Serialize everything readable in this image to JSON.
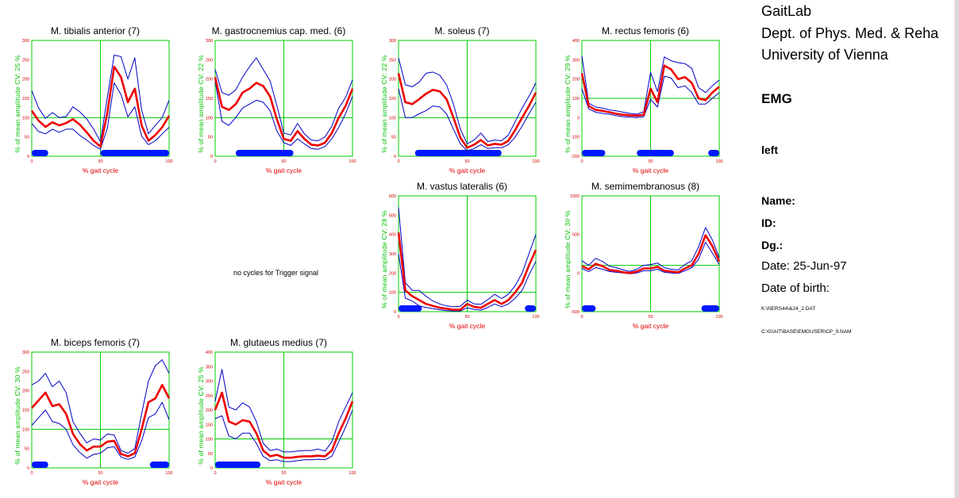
{
  "header": {
    "lab": "GaitLab",
    "dept": "Dept. of Phys. Med. & Reha",
    "university": "University of Vienna",
    "section": "EMG",
    "side": "left",
    "name_label": "Name:",
    "id_label": "ID:",
    "dg_label": "Dg.:",
    "date": "Date: 25-Jun-97",
    "dob_label": "Date of birth:",
    "file1": "K:\\NERS44\\&24_2.DAT",
    "file2": "C:\\G\\AIT\\BASE\\EMGUSER\\CP_9.NAM"
  },
  "no_cycles_text": "no cycles for Trigger signal",
  "chart_data": [
    {
      "type": "line",
      "title": "M. tibialis anterior (7)",
      "ylabel": "% of mean amplitude  CV: 25 %",
      "xlabel": "% gait cycle",
      "xlim": [
        0,
        100
      ],
      "ylim": [
        0,
        300
      ],
      "yticks": [
        "0",
        "50",
        "100",
        "150",
        "200",
        "250",
        "300"
      ],
      "xticks": [
        "0",
        "50",
        "100"
      ],
      "x": [
        0,
        5,
        10,
        15,
        20,
        25,
        30,
        35,
        40,
        45,
        50,
        55,
        60,
        65,
        70,
        75,
        80,
        85,
        90,
        95,
        100
      ],
      "mean": [
        118,
        92,
        76,
        88,
        80,
        86,
        96,
        82,
        62,
        40,
        25,
        112,
        232,
        205,
        140,
        175,
        80,
        40,
        55,
        75,
        105
      ],
      "upper": [
        170,
        125,
        98,
        113,
        100,
        103,
        128,
        115,
        97,
        70,
        38,
        152,
        262,
        258,
        200,
        255,
        120,
        58,
        80,
        100,
        145
      ],
      "lower": [
        85,
        64,
        58,
        70,
        62,
        70,
        70,
        54,
        42,
        28,
        18,
        72,
        190,
        160,
        102,
        128,
        52,
        30,
        40,
        58,
        75
      ],
      "stance_bars": [
        [
          0,
          12
        ],
        [
          50,
          100
        ]
      ]
    },
    {
      "type": "line",
      "title": "M. gastrocnemius cap. med. (6)",
      "ylabel": "% of mean amplitude  CV: 22 %",
      "xlabel": "% gait cycle",
      "xlim": [
        0,
        100
      ],
      "ylim": [
        0,
        300
      ],
      "yticks": [
        "0",
        "50",
        "100",
        "150",
        "200",
        "250",
        "300"
      ],
      "xticks": [
        "0",
        "50",
        "100"
      ],
      "x": [
        0,
        5,
        10,
        15,
        20,
        25,
        30,
        35,
        40,
        45,
        50,
        55,
        60,
        65,
        70,
        75,
        80,
        85,
        90,
        95,
        100
      ],
      "mean": [
        205,
        128,
        120,
        135,
        165,
        175,
        190,
        182,
        155,
        95,
        45,
        40,
        65,
        45,
        30,
        28,
        35,
        60,
        100,
        130,
        175
      ],
      "upper": [
        225,
        165,
        158,
        172,
        205,
        232,
        255,
        225,
        195,
        130,
        60,
        55,
        85,
        58,
        42,
        40,
        50,
        78,
        125,
        152,
        198
      ],
      "lower": [
        195,
        90,
        80,
        100,
        125,
        135,
        145,
        140,
        118,
        65,
        35,
        28,
        45,
        32,
        20,
        18,
        25,
        45,
        75,
        110,
        155
      ],
      "stance_bars": [
        [
          15,
          57
        ]
      ]
    },
    {
      "type": "line",
      "title": "M. soleus (7)",
      "ylabel": "% of mean amplitude  CV: 22 %",
      "xlabel": "% gait cycle",
      "xlim": [
        0,
        100
      ],
      "ylim": [
        0,
        300
      ],
      "yticks": [
        "0",
        "50",
        "100",
        "150",
        "200",
        "250",
        "300"
      ],
      "xticks": [
        "0",
        "50",
        "100"
      ],
      "x": [
        0,
        5,
        10,
        15,
        20,
        25,
        30,
        35,
        40,
        45,
        50,
        55,
        60,
        65,
        70,
        75,
        80,
        85,
        90,
        95,
        100
      ],
      "mean": [
        215,
        140,
        135,
        148,
        162,
        172,
        168,
        148,
        100,
        48,
        22,
        30,
        42,
        28,
        32,
        30,
        40,
        68,
        100,
        130,
        165
      ],
      "upper": [
        255,
        185,
        180,
        192,
        215,
        218,
        210,
        185,
        135,
        70,
        32,
        42,
        60,
        38,
        42,
        40,
        55,
        90,
        125,
        155,
        190
      ],
      "lower": [
        175,
        100,
        100,
        110,
        118,
        130,
        128,
        110,
        70,
        32,
        14,
        20,
        30,
        20,
        22,
        22,
        30,
        50,
        78,
        110,
        140
      ],
      "stance_bars": [
        [
          12,
          75
        ]
      ]
    },
    {
      "type": "line",
      "title": "M. rectus femoris (6)",
      "ylabel": "% of mean amplitude  CV: 29 %",
      "xlabel": "% gait cycle",
      "xlim": [
        0,
        100
      ],
      "ylim": [
        -200,
        400
      ],
      "yticks": [
        "-200",
        "-100",
        "0",
        "100",
        "200",
        "300",
        "400"
      ],
      "xticks": [
        "0",
        "50",
        "100"
      ],
      "x": [
        0,
        5,
        10,
        15,
        20,
        25,
        30,
        35,
        40,
        45,
        50,
        55,
        60,
        65,
        70,
        75,
        80,
        85,
        90,
        95,
        100
      ],
      "mean": [
        230,
        60,
        40,
        35,
        28,
        20,
        15,
        12,
        10,
        15,
        150,
        80,
        270,
        250,
        200,
        210,
        180,
        100,
        90,
        130,
        160
      ],
      "upper": [
        320,
        75,
        55,
        50,
        40,
        35,
        28,
        22,
        18,
        30,
        235,
        135,
        315,
        295,
        285,
        280,
        255,
        155,
        130,
        165,
        195
      ],
      "lower": [
        150,
        45,
        28,
        22,
        18,
        10,
        5,
        2,
        0,
        5,
        95,
        55,
        215,
        205,
        155,
        165,
        130,
        70,
        70,
        100,
        130
      ],
      "stance_bars": [
        [
          0,
          17
        ],
        [
          40,
          67
        ],
        [
          92,
          100
        ]
      ]
    },
    {
      "type": "line",
      "title": "M. vastus lateralis (6)",
      "ylabel": "% of mean amplitude  CV: 29 %",
      "xlabel": "% gait cycle",
      "xlim": [
        0,
        100
      ],
      "ylim": [
        0,
        600
      ],
      "yticks": [
        "0",
        "100",
        "200",
        "300",
        "400",
        "500",
        "600"
      ],
      "xticks": [
        "0",
        "50",
        "100"
      ],
      "x": [
        0,
        5,
        10,
        15,
        20,
        25,
        30,
        35,
        40,
        45,
        50,
        55,
        60,
        65,
        70,
        75,
        80,
        85,
        90,
        95,
        100
      ],
      "mean": [
        410,
        110,
        80,
        60,
        40,
        30,
        20,
        15,
        10,
        10,
        40,
        25,
        20,
        40,
        60,
        40,
        60,
        100,
        150,
        240,
        320
      ],
      "upper": [
        540,
        150,
        110,
        110,
        80,
        55,
        40,
        30,
        25,
        28,
        60,
        40,
        38,
        62,
        90,
        68,
        90,
        135,
        200,
        300,
        400
      ],
      "lower": [
        300,
        70,
        55,
        30,
        22,
        15,
        10,
        5,
        3,
        3,
        20,
        12,
        8,
        22,
        40,
        25,
        40,
        70,
        110,
        190,
        260
      ],
      "stance_bars": [
        [
          0,
          17
        ],
        [
          92,
          100
        ]
      ]
    },
    {
      "type": "line",
      "title": "M. semimembranosus (8)",
      "ylabel": "% of mean amplitude  CV: 30 %",
      "xlabel": "% gait cycle",
      "xlim": [
        0,
        100
      ],
      "ylim": [
        -500,
        1000
      ],
      "yticks": [
        "-500",
        "0",
        "500",
        "1000"
      ],
      "xticks": [
        "0",
        "50",
        "100"
      ],
      "x": [
        0,
        5,
        10,
        15,
        20,
        25,
        30,
        35,
        40,
        45,
        50,
        55,
        60,
        65,
        70,
        75,
        80,
        85,
        90,
        95,
        100
      ],
      "mean": [
        90,
        50,
        120,
        90,
        40,
        30,
        10,
        0,
        20,
        60,
        60,
        80,
        30,
        20,
        10,
        60,
        100,
        250,
        490,
        350,
        150
      ],
      "upper": [
        160,
        100,
        190,
        150,
        90,
        70,
        40,
        20,
        50,
        100,
        110,
        130,
        70,
        50,
        40,
        110,
        160,
        340,
        590,
        430,
        200
      ],
      "lower": [
        60,
        20,
        70,
        50,
        20,
        10,
        0,
        -10,
        0,
        30,
        30,
        50,
        10,
        0,
        -5,
        30,
        70,
        180,
        400,
        260,
        110
      ],
      "stance_bars": [
        [
          0,
          10
        ],
        [
          87,
          100
        ]
      ]
    },
    {
      "type": "line",
      "title": "M. biceps femoris (7)",
      "ylabel": "% of mean amplitude  CV: 30 %",
      "xlabel": "% gait cycle",
      "xlim": [
        0,
        100
      ],
      "ylim": [
        0,
        300
      ],
      "yticks": [
        "0",
        "50",
        "100",
        "150",
        "200",
        "250",
        "300"
      ],
      "xticks": [
        "0",
        "50",
        "100"
      ],
      "x": [
        0,
        5,
        10,
        15,
        20,
        25,
        30,
        35,
        40,
        45,
        50,
        55,
        60,
        65,
        70,
        75,
        80,
        85,
        90,
        95,
        100
      ],
      "mean": [
        155,
        175,
        195,
        160,
        165,
        140,
        88,
        62,
        45,
        55,
        55,
        68,
        70,
        36,
        30,
        38,
        100,
        170,
        180,
        215,
        180
      ],
      "upper": [
        215,
        225,
        245,
        210,
        225,
        195,
        120,
        90,
        65,
        75,
        72,
        88,
        85,
        45,
        38,
        50,
        140,
        225,
        265,
        280,
        245
      ],
      "lower": [
        110,
        130,
        150,
        120,
        115,
        100,
        60,
        40,
        25,
        35,
        38,
        52,
        55,
        28,
        22,
        28,
        70,
        130,
        140,
        170,
        125
      ],
      "stance_bars": [
        [
          0,
          12
        ],
        [
          86,
          100
        ]
      ]
    },
    {
      "type": "line",
      "title": "M. glutaeus medius (7)",
      "ylabel": "% of mean amplitude  CV: 25 %",
      "xlabel": "% gait cycle",
      "xlim": [
        0,
        100
      ],
      "ylim": [
        0,
        400
      ],
      "yticks": [
        "0",
        "50",
        "100",
        "150",
        "200",
        "250",
        "300",
        "350",
        "400"
      ],
      "xticks": [
        "0",
        "50",
        "100"
      ],
      "x": [
        0,
        5,
        10,
        15,
        20,
        25,
        30,
        35,
        40,
        45,
        50,
        55,
        60,
        65,
        70,
        75,
        80,
        85,
        90,
        95,
        100
      ],
      "mean": [
        200,
        260,
        160,
        150,
        165,
        160,
        120,
        60,
        40,
        45,
        35,
        35,
        38,
        40,
        40,
        42,
        40,
        60,
        120,
        170,
        230
      ],
      "upper": [
        230,
        340,
        210,
        200,
        225,
        210,
        160,
        85,
        60,
        65,
        55,
        55,
        58,
        60,
        60,
        65,
        58,
        90,
        160,
        210,
        260
      ],
      "lower": [
        170,
        180,
        110,
        100,
        120,
        120,
        85,
        40,
        25,
        28,
        22,
        22,
        25,
        28,
        28,
        30,
        28,
        40,
        90,
        140,
        200
      ],
      "stance_bars": [
        [
          0,
          33
        ]
      ]
    }
  ]
}
